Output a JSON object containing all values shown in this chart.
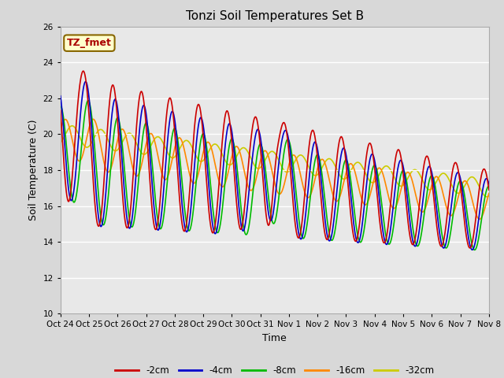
{
  "title": "Tonzi Soil Temperatures Set B",
  "xlabel": "Time",
  "ylabel": "Soil Temperature (C)",
  "ylim": [
    10,
    26
  ],
  "xlim": [
    0,
    360
  ],
  "fig_bg": "#d8d8d8",
  "plot_bg": "#e8e8e8",
  "annotation_text": "TZ_fmet",
  "annotation_bg": "#ffffcc",
  "annotation_border": "#886600",
  "annotation_text_color": "#aa0000",
  "series_colors": [
    "#cc0000",
    "#0000cc",
    "#00bb00",
    "#ff8800",
    "#cccc00"
  ],
  "series_labels": [
    "-2cm",
    "-4cm",
    "-8cm",
    "-16cm",
    "-32cm"
  ],
  "xtick_labels": [
    "Oct 24",
    "Oct 25",
    "Oct 26",
    "Oct 27",
    "Oct 28",
    "Oct 29",
    "Oct 30",
    "Oct 31",
    "Nov 1",
    "Nov 2",
    "Nov 3",
    "Nov 4",
    "Nov 5",
    "Nov 6",
    "Nov 7",
    "Nov 8"
  ],
  "xtick_positions": [
    0,
    24,
    48,
    72,
    96,
    120,
    144,
    168,
    192,
    216,
    240,
    264,
    288,
    312,
    336,
    360
  ],
  "yticks": [
    10,
    12,
    14,
    16,
    18,
    20,
    22,
    24,
    26
  ]
}
